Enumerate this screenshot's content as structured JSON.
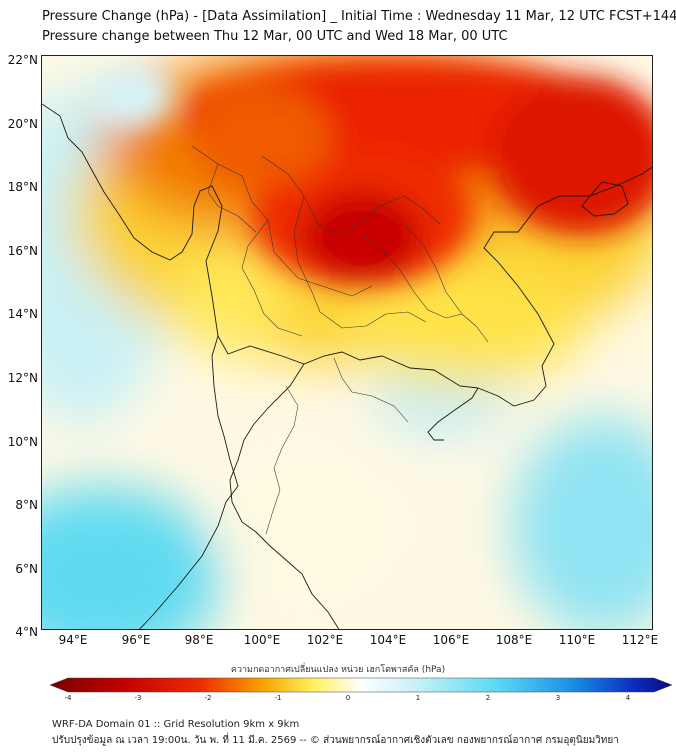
{
  "title": {
    "line1": "Pressure Change (hPa) - [Data Assimilation] _ Initial Time : Wednesday 11 Mar, 12 UTC FCST+144",
    "line2": "Pressure change between Thu 12 Mar, 00 UTC and Wed 18 Mar, 00 UTC"
  },
  "map": {
    "lat_labels": [
      "22°N",
      "20°N",
      "18°N",
      "16°N",
      "14°N",
      "12°N",
      "10°N",
      "8°N",
      "6°N",
      "4°N"
    ],
    "lon_labels": [
      "94°E",
      "96°E",
      "98°E",
      "100°E",
      "102°E",
      "104°E",
      "106°E",
      "108°E",
      "110°E",
      "112°E"
    ],
    "colors": {
      "deep_red": "#c40000",
      "red": "#ee2a00",
      "orange": "#f7a000",
      "yellow": "#ffef55",
      "pale": "#fffbd8",
      "light_cyan": "#bfeff7",
      "cyan": "#59d9f2"
    }
  },
  "colorbar": {
    "label": "ความกดอากาศเปลี่ยนแปลง หน่วย เฮกโตพาสคัล (hPa)",
    "ticks": [
      "-4",
      "-3",
      "-2",
      "-1",
      "0",
      "1",
      "2",
      "3",
      "4"
    ]
  },
  "footer": {
    "line1": "WRF-DA Domain 01 :: Grid Resolution 9km x 9km",
    "line2": "ปรับปรุงข้อมูล ณ เวลา 19:00น. วัน พ. ที่ 11 มี.ค. 2569 -- © ส่วนพยากรณ์อากาศเชิงตัวเลข กองพยากรณ์อากาศ กรมอุตุนิยมวิทยา"
  }
}
